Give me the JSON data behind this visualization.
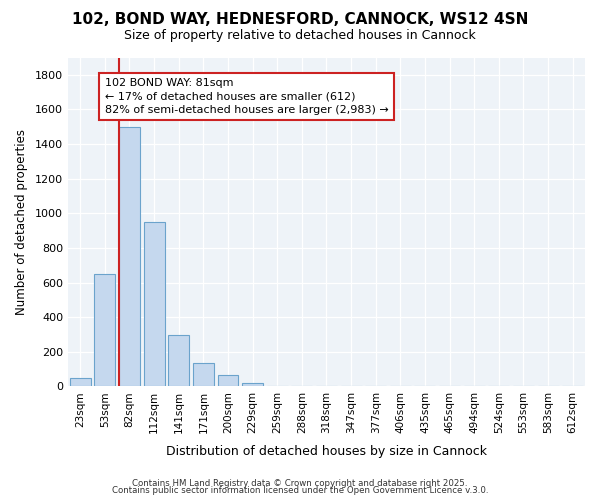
{
  "title": "102, BOND WAY, HEDNESFORD, CANNOCK, WS12 4SN",
  "subtitle": "Size of property relative to detached houses in Cannock",
  "xlabel": "Distribution of detached houses by size in Cannock",
  "ylabel": "Number of detached properties",
  "background_color": "#ffffff",
  "plot_bg_color": "#eef3f8",
  "bar_color": "#c5d8ee",
  "bar_edge_color": "#6ba3cc",
  "annotation_box_color": "#cc2222",
  "annotation_text": "102 BOND WAY: 81sqm\n← 17% of detached houses are smaller (612)\n82% of semi-detached houses are larger (2,983) →",
  "footer1": "Contains HM Land Registry data © Crown copyright and database right 2025.",
  "footer2": "Contains public sector information licensed under the Open Government Licence v.3.0.",
  "categories": [
    "23sqm",
    "53sqm",
    "82sqm",
    "112sqm",
    "141sqm",
    "171sqm",
    "200sqm",
    "229sqm",
    "259sqm",
    "288sqm",
    "318sqm",
    "347sqm",
    "377sqm",
    "406sqm",
    "435sqm",
    "465sqm",
    "494sqm",
    "524sqm",
    "553sqm",
    "583sqm",
    "612sqm"
  ],
  "values": [
    50,
    650,
    1500,
    950,
    295,
    135,
    65,
    20,
    3,
    0,
    0,
    0,
    0,
    0,
    0,
    0,
    0,
    0,
    0,
    0,
    0
  ],
  "highlight_index": 2,
  "ylim": [
    0,
    1900
  ],
  "yticks": [
    0,
    200,
    400,
    600,
    800,
    1000,
    1200,
    1400,
    1600,
    1800
  ],
  "figsize": [
    6.0,
    5.0
  ],
  "dpi": 100
}
